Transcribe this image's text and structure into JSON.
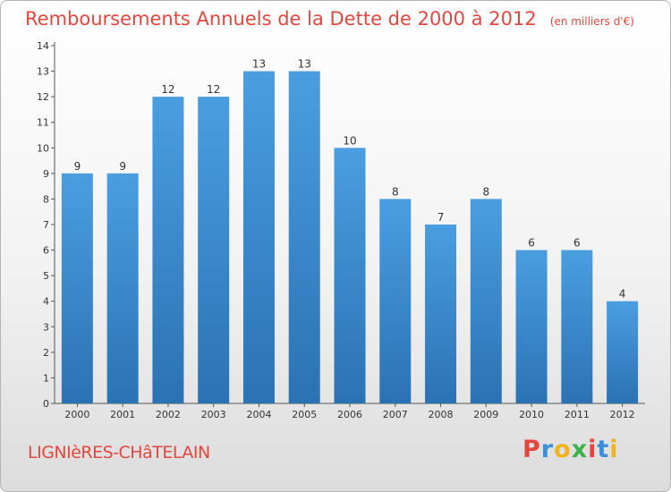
{
  "chart_data": {
    "type": "bar",
    "title": "Remboursements Annuels de la Dette de 2000 à 2012",
    "subtitle": "(en milliers d'€)",
    "categories": [
      "2000",
      "2001",
      "2002",
      "2003",
      "2004",
      "2005",
      "2006",
      "2007",
      "2008",
      "2009",
      "2010",
      "2011",
      "2012"
    ],
    "values": [
      9,
      9,
      12,
      12,
      13,
      13,
      10,
      8,
      7,
      8,
      6,
      6,
      4
    ],
    "ylim": [
      0,
      14
    ],
    "yticks": [
      0,
      1,
      2,
      3,
      4,
      5,
      6,
      7,
      8,
      9,
      10,
      11,
      12,
      13,
      14
    ],
    "grid": false,
    "bar_color": "#4a9ee0",
    "bar_color_dark": "#2b72b3"
  },
  "footer": {
    "commune": "LIGNIèRES-CHâTELAIN",
    "logo": [
      "P",
      "r",
      "o",
      "x",
      "i",
      "t",
      "i"
    ]
  }
}
